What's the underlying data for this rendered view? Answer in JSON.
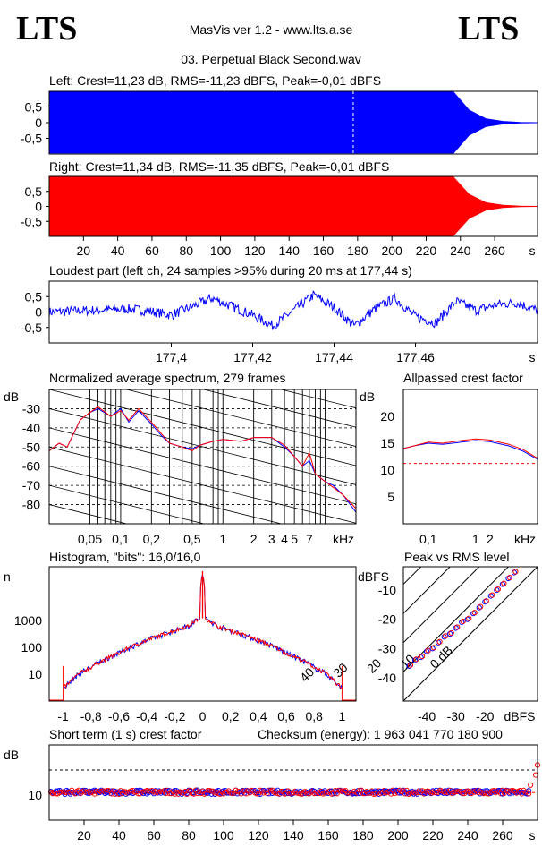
{
  "header": {
    "logo_left": "LTS",
    "logo_right": "LTS",
    "app": "MasVis ver 1.2 - www.lts.a.se",
    "file": "03. Perpetual Black Second.wav"
  },
  "colors": {
    "left": "#0000ff",
    "right": "#ff0000",
    "axis": "#000000",
    "ref": "#ff0000"
  },
  "chart_data": [
    {
      "id": "left",
      "type": "area",
      "title": "Left: Crest=11,23 dB, RMS=-11,23 dBFS, Peak=-0,01 dBFS",
      "xlim": [
        0,
        285
      ],
      "ylim": [
        -1,
        1
      ],
      "x_ticks": [
        "20",
        "40",
        "60",
        "80",
        "100",
        "120",
        "140",
        "160",
        "180",
        "200",
        "220",
        "240",
        "260",
        "s"
      ],
      "y_ticks": [
        "0,5",
        "0",
        "-0,5"
      ],
      "envelope_x": [
        0,
        15,
        80,
        150,
        236,
        245,
        255,
        265,
        275,
        285
      ],
      "envelope_peak": [
        0.97,
        0.97,
        0.97,
        0.97,
        0.97,
        0.4,
        0.12,
        0.04,
        0.01,
        0.0
      ],
      "marker_s": 177.44
    },
    {
      "id": "right",
      "type": "area",
      "title": "Right: Crest=11,34 dB, RMS=-11,35 dBFS, Peak=-0,01 dBFS",
      "xlim": [
        0,
        285
      ],
      "ylim": [
        -1,
        1
      ],
      "x_ticks": [
        "20",
        "40",
        "60",
        "80",
        "100",
        "120",
        "140",
        "160",
        "180",
        "200",
        "220",
        "240",
        "260",
        "s"
      ],
      "y_ticks": [
        "0,5",
        "0",
        "-0,5"
      ],
      "envelope_x": [
        0,
        15,
        80,
        150,
        236,
        245,
        255,
        265,
        275,
        285
      ],
      "envelope_peak": [
        0.97,
        0.97,
        0.97,
        0.97,
        0.97,
        0.4,
        0.12,
        0.04,
        0.01,
        0.0
      ]
    },
    {
      "id": "loudest",
      "type": "line",
      "title": "Loudest part (left  ch, 24 samples >95% during 20 ms at 177,44 s)",
      "xlim": [
        177.37,
        177.49
      ],
      "ylim": [
        -1,
        1
      ],
      "x_ticks": [
        "177,4",
        "177,42",
        "177,44",
        "177,46",
        "s"
      ],
      "y_ticks": [
        "0,5",
        "0",
        "-0,5"
      ],
      "x": [
        177.37,
        177.38,
        177.39,
        177.396,
        177.4,
        177.41,
        177.42,
        177.425,
        177.43,
        177.435,
        177.44,
        177.445,
        177.45,
        177.455,
        177.46,
        177.465,
        177.47,
        177.475,
        177.48,
        177.485,
        177.49
      ],
      "y": [
        0.0,
        0.05,
        0.1,
        0.0,
        -0.1,
        0.45,
        -0.1,
        -0.45,
        0.05,
        0.55,
        0.15,
        -0.45,
        0.1,
        0.45,
        -0.15,
        -0.35,
        0.35,
        0.05,
        0.25,
        0.3,
        0.05
      ]
    },
    {
      "id": "spectrum",
      "type": "line",
      "title": "Normalized average spectrum, 279 frames",
      "ylabel": "dB",
      "xlabel": "kHz",
      "x_scale": "log",
      "xlim": [
        0.02,
        20
      ],
      "ylim": [
        -90,
        -20
      ],
      "x_ticks": [
        "0,05",
        "0,1",
        "0,2",
        "0,5",
        "1",
        "2",
        "3",
        "4",
        "5",
        "7",
        "kHz"
      ],
      "y_ticks": [
        "-30",
        "-40",
        "-50",
        "-60",
        "-70",
        "-80"
      ],
      "freq_khz": [
        0.02,
        0.025,
        0.03,
        0.04,
        0.05,
        0.06,
        0.08,
        0.1,
        0.12,
        0.15,
        0.2,
        0.25,
        0.3,
        0.4,
        0.5,
        0.6,
        0.8,
        1,
        1.5,
        2,
        3,
        4,
        5,
        6,
        7,
        8,
        10,
        12,
        15,
        20
      ],
      "series": [
        {
          "values": [
            -52,
            -48,
            -50,
            -36,
            -32,
            -30,
            -34,
            -30,
            -37,
            -31,
            -38,
            -44,
            -48,
            -50,
            -51,
            -49,
            -47,
            -46,
            -47,
            -45,
            -45,
            -50,
            -55,
            -60,
            -57,
            -64,
            -68,
            -70,
            -75,
            -84
          ]
        },
        {
          "values": [
            -52,
            -48,
            -50,
            -36,
            -32,
            -29,
            -34,
            -31,
            -36,
            -30,
            -37,
            -43,
            -48,
            -50,
            -52,
            -49,
            -47,
            -46,
            -47,
            -45,
            -45,
            -49,
            -55,
            -60,
            -53,
            -64,
            -68,
            -71,
            -75,
            -82
          ]
        }
      ]
    },
    {
      "id": "allpass",
      "type": "line",
      "title": "Allpassed crest factor",
      "ylabel": "dB",
      "xlabel": "kHz",
      "x_scale": "log",
      "xlim": [
        0.03,
        20
      ],
      "ylim": [
        0,
        25
      ],
      "x_ticks": [
        "0,1",
        "1",
        "2",
        "kHz"
      ],
      "y_ticks": [
        "20",
        "15",
        "10",
        "5"
      ],
      "freq_khz": [
        0.03,
        0.05,
        0.1,
        0.2,
        0.5,
        1,
        2,
        5,
        10,
        20
      ],
      "series": [
        {
          "values": [
            14.0,
            14.5,
            15.0,
            14.8,
            15.2,
            15.5,
            15.3,
            14.5,
            13.5,
            12.0
          ]
        },
        {
          "values": [
            14.0,
            14.5,
            15.2,
            15.0,
            15.5,
            15.8,
            15.6,
            14.8,
            13.8,
            12.2
          ]
        }
      ],
      "reference_db": 11.23
    },
    {
      "id": "histogram",
      "type": "line",
      "title": "Histogram, \"bits\": 16,0/16,0",
      "ylabel": "n",
      "y_scale": "log",
      "xlim": [
        -1.1,
        1.1
      ],
      "ylim": [
        1,
        100000
      ],
      "x_ticks": [
        "-1",
        "-0,8",
        "-0,6",
        "-0,4",
        "-0,2",
        "0",
        "0,2",
        "0,4",
        "0,6",
        "0,8",
        "1"
      ],
      "y_ticks": [
        "1000",
        "100",
        "10"
      ],
      "x": [
        -1.0,
        -0.95,
        -0.9,
        -0.8,
        -0.7,
        -0.6,
        -0.5,
        -0.4,
        -0.3,
        -0.2,
        -0.1,
        -0.02,
        0.0,
        0.02,
        0.1,
        0.2,
        0.3,
        0.4,
        0.5,
        0.6,
        0.7,
        0.8,
        0.9,
        0.95,
        1.0
      ],
      "y": [
        3,
        5,
        9,
        18,
        35,
        60,
        110,
        180,
        280,
        420,
        620,
        1200,
        50000,
        1200,
        620,
        420,
        280,
        180,
        110,
        60,
        35,
        18,
        9,
        5,
        3
      ]
    },
    {
      "id": "peak_rms",
      "type": "scatter",
      "title": "Peak vs RMS level",
      "ylabel": "dBFS",
      "xlabel": "dBFS",
      "xlim": [
        -48,
        -2
      ],
      "ylim": [
        -48,
        -2
      ],
      "x_ticks": [
        "-40",
        "-30",
        "-20",
        "dBFS"
      ],
      "y_ticks": [
        "-10",
        "-20",
        "-30",
        "-40"
      ],
      "diag_labels": [
        "40",
        "30",
        "20",
        "10",
        "0 dB"
      ],
      "x": [
        -46,
        -44,
        -42,
        -40,
        -38,
        -36,
        -34,
        -32,
        -30,
        -28,
        -26,
        -24,
        -22,
        -20,
        -18,
        -16,
        -14,
        -12,
        -10
      ],
      "y": [
        -36,
        -34,
        -33,
        -31,
        -30,
        -28,
        -26,
        -25,
        -23,
        -21,
        -20,
        -18,
        -16,
        -14,
        -12,
        -10,
        -8,
        -6,
        -4
      ]
    },
    {
      "id": "short_crest",
      "type": "scatter",
      "title": "Short term (1 s) crest factor",
      "checksum": "Checksum (energy):  1 963 041 770 180 900",
      "ylabel": "dB",
      "xlim": [
        0,
        280
      ],
      "ylim": [
        0,
        30
      ],
      "x_ticks": [
        "20",
        "40",
        "60",
        "80",
        "100",
        "120",
        "140",
        "160",
        "180",
        "200",
        "220",
        "240",
        "260",
        "s"
      ],
      "y_ticks": [
        "10"
      ],
      "reference_db": 20,
      "mean_db": 11,
      "end_x": [
        276,
        279,
        280
      ],
      "end_y": [
        14,
        18,
        22
      ]
    }
  ]
}
